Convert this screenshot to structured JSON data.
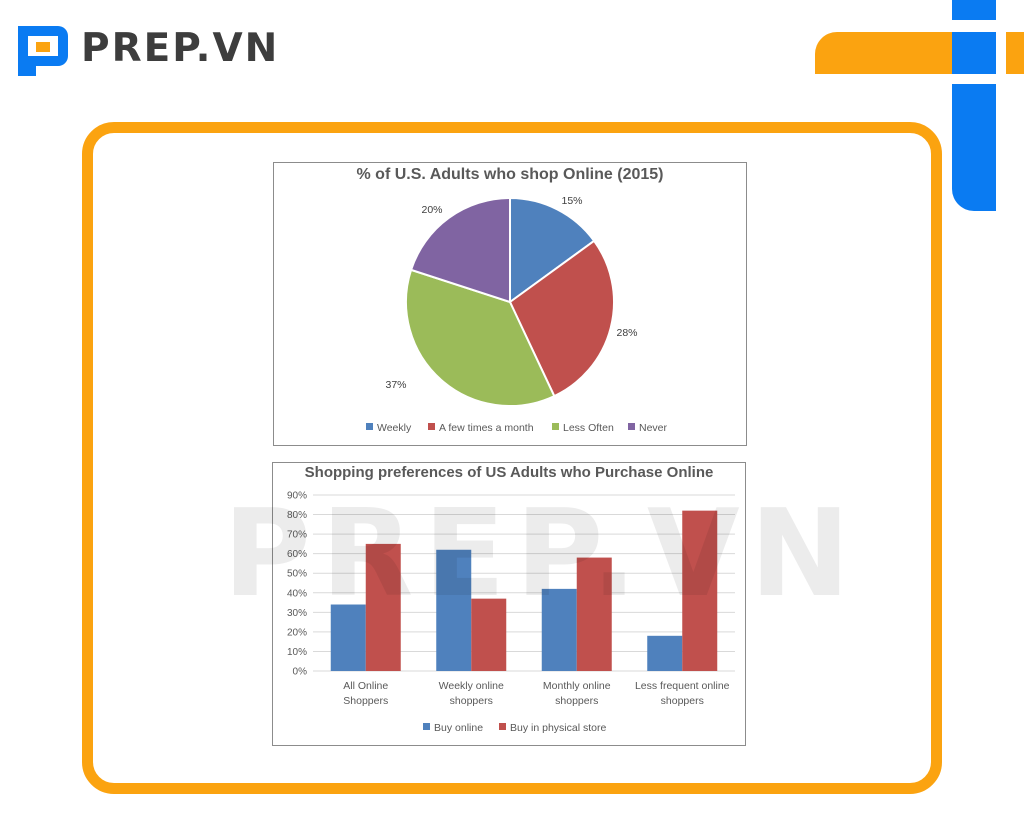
{
  "header": {
    "brand_name": "PREP.VN",
    "watermark": "PREP.VN"
  },
  "colors": {
    "brand_orange": "#fba310",
    "brand_blue": "#0a7bf2",
    "series_blue": "#4f81bd",
    "series_red": "#c0504d",
    "series_green": "#9bbb59",
    "series_purple": "#8064a2"
  },
  "chart_data": [
    {
      "type": "pie",
      "title": "% of U.S. Adults who shop Online (2015)",
      "categories": [
        "Weekly",
        "A few times a month",
        "Less Often",
        "Never"
      ],
      "values": [
        15,
        28,
        37,
        20
      ],
      "data_labels": [
        "15%",
        "28%",
        "37%",
        "20%"
      ],
      "colors": [
        "#4f81bd",
        "#c0504d",
        "#9bbb59",
        "#8064a2"
      ],
      "legend": "bottom"
    },
    {
      "type": "bar",
      "title": "Shopping preferences of US Adults who Purchase Online",
      "categories": [
        "All Online Shoppers",
        "Weekly online shoppers",
        "Monthly online shoppers",
        "Less frequent online shoppers"
      ],
      "series": [
        {
          "name": "Buy online",
          "values": [
            34,
            62,
            42,
            18
          ],
          "color": "#4f81bd"
        },
        {
          "name": "Buy in physical store",
          "values": [
            65,
            37,
            58,
            82
          ],
          "color": "#c0504d"
        }
      ],
      "ylim": [
        0,
        90
      ],
      "yticks": [
        "0%",
        "10%",
        "20%",
        "30%",
        "40%",
        "50%",
        "60%",
        "70%",
        "80%",
        "90%"
      ],
      "grid": true,
      "legend": "bottom"
    }
  ]
}
